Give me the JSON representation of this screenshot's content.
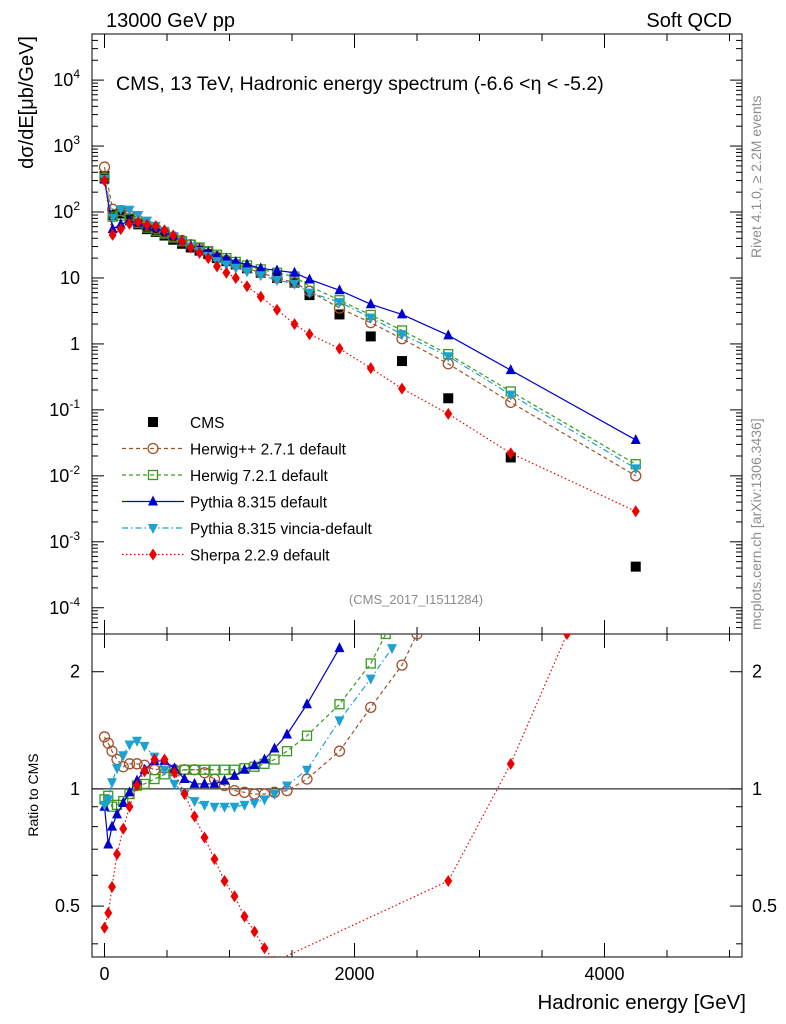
{
  "header": {
    "left": "13000 GeV pp",
    "right": "Soft QCD"
  },
  "side": {
    "rivet": "Rivet 4.1.0, ≥ 2.2M events",
    "mcplots": "mcplots.cern.ch [arXiv:1306.3436]"
  },
  "chart_data": [
    {
      "type": "scatter",
      "panel": "main",
      "title": "CMS, 13 TeV, Hadronic energy spectrum (-6.6 <η < -5.2)",
      "ylabel": "dσ/dE[μb/GeV]",
      "yscale": "log",
      "ylim": [
        4e-05,
        50000
      ],
      "xlim": [
        -100,
        5100
      ],
      "analysis_tag": "(CMS_2017_I1511284)",
      "y_tick_labels": [
        "10^-4",
        "10^-3",
        "10^-2",
        "10^-1",
        "1",
        "10",
        "10^2",
        "10^3",
        "10^4"
      ],
      "legend_position": "bottom-left",
      "series": [
        {
          "name": "CMS",
          "color": "#000000",
          "style": "data",
          "marker": "square",
          "x": [
            0,
            65,
            130,
            200,
            270,
            340,
            410,
            480,
            550,
            620,
            690,
            760,
            830,
            900,
            975,
            1050,
            1140,
            1250,
            1380,
            1520,
            1640,
            1880,
            2130,
            2380,
            2750,
            3250,
            4250
          ],
          "y": [
            350,
            90,
            95,
            80,
            65,
            55,
            50,
            44,
            38,
            33,
            29,
            26,
            23,
            20,
            18,
            16,
            14,
            12,
            10,
            8.5,
            5.5,
            2.8,
            1.3,
            0.55,
            0.15,
            0.019,
            0.00042
          ]
        },
        {
          "name": "Herwig++ 2.7.1 default",
          "color": "#a0522d",
          "style": "dashed",
          "marker": "open-circle",
          "x": [
            0,
            65,
            130,
            200,
            270,
            340,
            410,
            480,
            550,
            620,
            690,
            760,
            830,
            900,
            975,
            1050,
            1140,
            1250,
            1380,
            1520,
            1640,
            1880,
            2130,
            2380,
            2750,
            3250,
            4250
          ],
          "y": [
            480,
            110,
            105,
            88,
            74,
            63,
            56,
            49,
            42,
            37,
            32,
            28,
            25,
            21,
            18.5,
            16,
            14,
            12,
            10,
            8.5,
            6.3,
            3.5,
            2.1,
            1.2,
            0.5,
            0.13,
            0.01
          ]
        },
        {
          "name": "Herwig 7.2.1 default",
          "color": "#3a9a1e",
          "style": "dashed",
          "marker": "open-square",
          "x": [
            0,
            65,
            130,
            200,
            270,
            340,
            410,
            480,
            550,
            620,
            690,
            760,
            830,
            900,
            975,
            1050,
            1140,
            1250,
            1380,
            1520,
            1640,
            1880,
            2130,
            2380,
            2750,
            3250,
            4250
          ],
          "y": [
            330,
            85,
            88,
            80,
            68,
            58,
            52,
            47,
            41,
            36,
            32,
            29,
            25.5,
            22.5,
            20,
            17.5,
            15.5,
            13.5,
            12,
            10.5,
            7.5,
            4.6,
            2.75,
            1.6,
            0.7,
            0.19,
            0.015
          ]
        },
        {
          "name": "Pythia 8.315 default",
          "color": "#0000cc",
          "style": "solid",
          "marker": "triangle-up",
          "x": [
            0,
            65,
            130,
            200,
            270,
            340,
            410,
            480,
            550,
            620,
            690,
            760,
            830,
            900,
            975,
            1050,
            1140,
            1250,
            1380,
            1520,
            1640,
            1880,
            2130,
            2380,
            2750,
            3250,
            4250
          ],
          "y": [
            310,
            55,
            65,
            72,
            69,
            62,
            59,
            52,
            44,
            37,
            31,
            27.5,
            24.5,
            21.5,
            19.5,
            17.5,
            16,
            14,
            13,
            12,
            9.5,
            6.5,
            4,
            2.8,
            1.35,
            0.4,
            0.035
          ]
        },
        {
          "name": "Pythia 8.315 vincia-default",
          "color": "#1ba1d2",
          "style": "dashdot",
          "marker": "triangle-down",
          "x": [
            0,
            65,
            130,
            200,
            270,
            340,
            410,
            480,
            550,
            620,
            690,
            760,
            830,
            900,
            975,
            1050,
            1140,
            1250,
            1380,
            1520,
            1640,
            1880,
            2130,
            2380,
            2750,
            3250,
            4250
          ],
          "y": [
            320,
            82,
            110,
            108,
            90,
            74,
            62,
            52,
            43,
            36,
            30,
            25.5,
            21.5,
            18,
            16,
            14.3,
            12.6,
            11,
            9.3,
            8.2,
            6,
            4.3,
            2.5,
            1.4,
            0.65,
            0.17,
            0.013
          ]
        },
        {
          "name": "Sherpa 2.2.9 default",
          "color": "#ee0000",
          "style": "dotted",
          "marker": "diamond",
          "x": [
            0,
            65,
            130,
            200,
            270,
            340,
            410,
            480,
            550,
            620,
            690,
            760,
            830,
            900,
            975,
            1050,
            1140,
            1250,
            1380,
            1520,
            1640,
            1880,
            2130,
            2380,
            2750,
            3250,
            4250
          ],
          "y": [
            300,
            45,
            55,
            66,
            70,
            64,
            61,
            53,
            44,
            36,
            29,
            24,
            20,
            15,
            12,
            10,
            7.5,
            5.2,
            3.3,
            2,
            1.4,
            0.85,
            0.43,
            0.21,
            0.087,
            0.022,
            0.0029
          ]
        }
      ]
    },
    {
      "type": "line",
      "panel": "ratio",
      "ylabel": "Ratio to CMS",
      "xlabel": "Hadronic energy [GeV]",
      "yscale": "log",
      "ylim": [
        0.37,
        2.5
      ],
      "xlim": [
        -100,
        5100
      ],
      "x_tick_labels": [
        "0",
        "2000",
        "4000"
      ],
      "y_tick_labels": [
        "0.5",
        "1",
        "2"
      ],
      "reference_line": 1,
      "series": [
        {
          "name": "Herwig++ 2.7.1 default",
          "x": [
            0,
            30,
            60,
            100,
            150,
            200,
            260,
            320,
            400,
            480,
            560,
            640,
            720,
            800,
            880,
            960,
            1040,
            1120,
            1200,
            1280,
            1360,
            1460,
            1620,
            1880,
            2130,
            2380,
            2500
          ],
          "y": [
            1.36,
            1.31,
            1.25,
            1.19,
            1.14,
            1.16,
            1.16,
            1.15,
            1.12,
            1.13,
            1.12,
            1.12,
            1.12,
            1.1,
            1.06,
            1.02,
            0.99,
            0.98,
            0.97,
            0.97,
            0.98,
            0.99,
            1.06,
            1.25,
            1.62,
            2.08,
            2.5
          ]
        },
        {
          "name": "Herwig 7.2.1 default",
          "x": [
            0,
            30,
            60,
            100,
            150,
            200,
            260,
            320,
            400,
            480,
            560,
            640,
            720,
            800,
            880,
            960,
            1040,
            1120,
            1200,
            1280,
            1360,
            1460,
            1620,
            1880,
            2130,
            2250
          ],
          "y": [
            0.94,
            0.96,
            0.9,
            0.91,
            0.93,
            0.97,
            1.02,
            1.03,
            1.06,
            1.09,
            1.11,
            1.12,
            1.12,
            1.12,
            1.12,
            1.12,
            1.12,
            1.13,
            1.14,
            1.16,
            1.19,
            1.25,
            1.37,
            1.65,
            2.1,
            2.5
          ]
        },
        {
          "name": "Pythia 8.315 default",
          "x": [
            0,
            30,
            60,
            100,
            150,
            200,
            260,
            320,
            400,
            480,
            560,
            640,
            720,
            800,
            880,
            960,
            1040,
            1120,
            1200,
            1280,
            1360,
            1460,
            1620,
            1880
          ],
          "y": [
            0.9,
            0.72,
            0.8,
            0.86,
            0.92,
            0.98,
            1.05,
            1.12,
            1.18,
            1.18,
            1.13,
            1.06,
            1.03,
            1.03,
            1.03,
            1.05,
            1.08,
            1.12,
            1.15,
            1.19,
            1.27,
            1.38,
            1.65,
            2.3
          ]
        },
        {
          "name": "Pythia 8.315 vincia-default",
          "x": [
            0,
            30,
            60,
            100,
            150,
            200,
            260,
            320,
            400,
            480,
            560,
            640,
            720,
            800,
            880,
            960,
            1040,
            1120,
            1200,
            1280,
            1360,
            1460,
            1620,
            1880,
            2130,
            2300
          ],
          "y": [
            0.91,
            0.94,
            1.04,
            1.13,
            1.22,
            1.3,
            1.33,
            1.29,
            1.21,
            1.12,
            1.03,
            0.97,
            0.93,
            0.91,
            0.9,
            0.9,
            0.9,
            0.91,
            0.92,
            0.94,
            0.97,
            1.02,
            1.12,
            1.5,
            1.92,
            2.3
          ]
        },
        {
          "name": "Sherpa 2.2.9 default",
          "x": [
            0,
            30,
            60,
            100,
            150,
            200,
            260,
            320,
            400,
            480,
            560,
            640,
            720,
            800,
            880,
            960,
            1040,
            1120,
            1200,
            1280,
            1360,
            2750,
            3250,
            3700
          ],
          "y": [
            0.44,
            0.48,
            0.56,
            0.68,
            0.79,
            0.9,
            1.02,
            1.11,
            1.19,
            1.19,
            1.1,
            0.97,
            0.85,
            0.75,
            0.66,
            0.58,
            0.53,
            0.47,
            0.43,
            0.39,
            0.36,
            0.58,
            1.16,
            2.5
          ]
        }
      ]
    }
  ]
}
